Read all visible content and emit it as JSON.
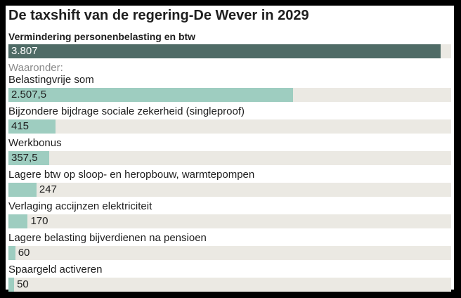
{
  "colors": {
    "total_bar": "#4f6b66",
    "component_bar": "#9ecdc0",
    "track": "#ebe9e3",
    "total_value_text": "#ffffff",
    "value_text": "#1e1e1e"
  },
  "chart_data": {
    "type": "bar",
    "orientation": "horizontal",
    "title": "De taxshift van de regering-De Wever in 2029",
    "subtitle": "",
    "group_label": "Waaronder:",
    "xlim": [
      0,
      3900
    ],
    "total": {
      "label": "Vermindering personenbelasting en btw",
      "value": 3807,
      "value_label": "3.807"
    },
    "categories": [
      "Belastingvrije som",
      "Bijzondere bijdrage sociale zekerheid (singleproof)",
      "Werkbonus",
      "Lagere btw op sloop- en heropbouw, warmtepompen",
      "Verlaging accijnzen elektriciteit",
      "Lagere belasting bijverdienen na pensioen",
      "Spaargeld activeren"
    ],
    "values": [
      2507.5,
      415,
      357.5,
      247,
      170,
      60,
      50
    ],
    "value_labels": [
      "2.507,5",
      "415",
      "357,5",
      "247",
      "170",
      "60",
      "50"
    ]
  }
}
